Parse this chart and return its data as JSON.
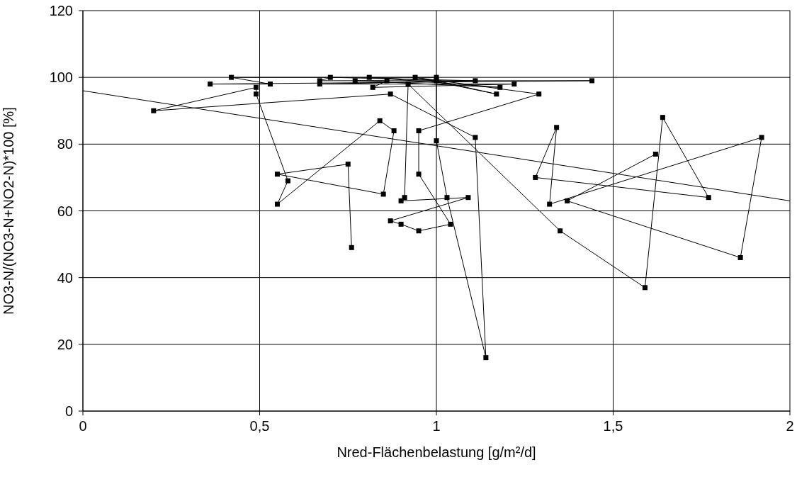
{
  "chart_data": {
    "type": "line",
    "xlabel": "Nred-Flächenbelastung [g/m²/d]",
    "ylabel": "NO3-N/(NO3-N+NO2-N)*100 [%]",
    "xlim": [
      0,
      2
    ],
    "xticks": [
      0,
      {
        "value": 0.5,
        "label": "0,5"
      },
      1,
      {
        "value": 1.5,
        "label": "1,5"
      },
      2
    ],
    "ylim": [
      0,
      120
    ],
    "yticks": [
      0,
      20,
      40,
      60,
      80,
      100,
      120
    ],
    "grid": true,
    "legend": false,
    "series": [
      {
        "color": "#000000",
        "marker": "square",
        "x": [
          0.76,
          0.75,
          0.55,
          0.85,
          0.88,
          0.84,
          0.55,
          0.58,
          0.49,
          0.49,
          0.2,
          0.87,
          1.11,
          1.14,
          1.03,
          1.0,
          1.0,
          0.42,
          0.53,
          0.36,
          1.44,
          0.67,
          0.7,
          1.11,
          0.67,
          1.22,
          0.82,
          0.86,
          0.77,
          1.18,
          0.81,
          1.0,
          1.17,
          0.94,
          1.29,
          0.95,
          0.95,
          1.04,
          0.95,
          0.9,
          0.87,
          1.09,
          0.9,
          0.91,
          0.92,
          1.35,
          1.59,
          1.64,
          1.77,
          1.28,
          1.34,
          1.32,
          1.92,
          1.86,
          1.37,
          1.62
        ],
        "values": [
          49,
          74,
          71,
          65,
          84,
          87,
          62,
          69,
          95,
          97,
          90,
          95,
          82,
          16,
          64,
          81,
          100,
          100,
          98,
          98,
          99,
          99,
          100,
          99,
          98,
          98,
          97,
          99,
          99,
          97,
          100,
          99,
          95,
          100,
          95,
          84,
          71,
          56,
          54,
          56,
          57,
          64,
          63,
          64,
          98,
          54,
          37,
          88,
          64,
          70,
          85,
          62,
          82,
          46,
          63,
          77
        ]
      },
      {
        "type": "line",
        "color": "#000000",
        "marker": "none",
        "x": [
          0,
          2
        ],
        "values": [
          96,
          63
        ]
      }
    ]
  }
}
